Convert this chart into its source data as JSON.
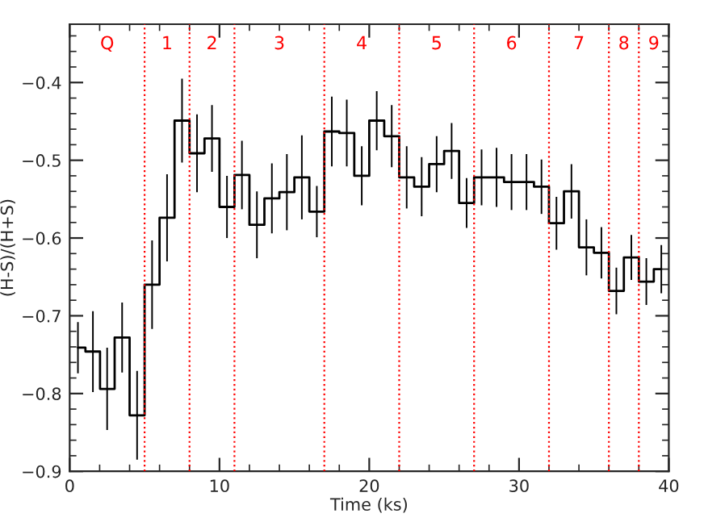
{
  "chart_data": {
    "type": "step",
    "xlabel": "Time (ks)",
    "ylabel": "(H-S)/(H+S)",
    "x": [
      0.55,
      1.55,
      2.5,
      3.5,
      4.5,
      5.5,
      6.5,
      7.5,
      8.5,
      9.5,
      10.5,
      11.5,
      12.5,
      13.5,
      14.5,
      15.5,
      16.5,
      17.5,
      18.5,
      19.5,
      20.5,
      21.5,
      22.5,
      23.5,
      24.5,
      25.5,
      26.5,
      27.5,
      28.5,
      29.5,
      30.5,
      31.5,
      32.5,
      33.5,
      34.5,
      35.5,
      36.5,
      37.5,
      38.5,
      39.5
    ],
    "values": [
      -0.741,
      -0.746,
      -0.794,
      -0.728,
      -0.828,
      -0.66,
      -0.574,
      -0.449,
      -0.491,
      -0.472,
      -0.56,
      -0.519,
      -0.583,
      -0.549,
      -0.541,
      -0.522,
      -0.566,
      -0.463,
      -0.465,
      -0.52,
      -0.449,
      -0.469,
      -0.522,
      -0.534,
      -0.505,
      -0.488,
      -0.555,
      -0.522,
      -0.522,
      -0.528,
      -0.528,
      -0.534,
      -0.581,
      -0.54,
      -0.612,
      -0.619,
      -0.668,
      -0.625,
      -0.656,
      -0.64
    ],
    "errors": [
      0.033,
      0.052,
      0.053,
      0.045,
      0.057,
      0.057,
      0.056,
      0.054,
      0.05,
      0.043,
      0.04,
      0.044,
      0.043,
      0.045,
      0.049,
      0.054,
      0.033,
      0.045,
      0.043,
      0.038,
      0.038,
      0.04,
      0.04,
      0.038,
      0.036,
      0.036,
      0.032,
      0.036,
      0.038,
      0.036,
      0.036,
      0.035,
      0.034,
      0.035,
      0.036,
      0.033,
      0.03,
      0.029,
      0.03,
      0.031
    ],
    "color": "#000000",
    "xlim": [
      0,
      40
    ],
    "xticks": [
      0,
      10,
      20,
      30,
      40
    ],
    "ylim": [
      -0.9,
      -0.325
    ],
    "yticks": [
      {
        "value": -0.9,
        "label": "−0.9"
      },
      {
        "value": -0.8,
        "label": "−0.8"
      },
      {
        "value": -0.7,
        "label": "−0.7"
      },
      {
        "value": -0.6,
        "label": "−0.6"
      },
      {
        "value": -0.5,
        "label": "−0.5"
      },
      {
        "value": -0.4,
        "label": "−0.4"
      }
    ],
    "grid": false,
    "ref_lines": [
      {
        "axis": "x",
        "value": 5,
        "color": "#ff0000",
        "line_style": "dotted"
      },
      {
        "axis": "x",
        "value": 8,
        "color": "#ff0000",
        "line_style": "dotted"
      },
      {
        "axis": "x",
        "value": 11,
        "color": "#ff0000",
        "line_style": "dotted"
      },
      {
        "axis": "x",
        "value": 17,
        "color": "#ff0000",
        "line_style": "dotted"
      },
      {
        "axis": "x",
        "value": 22,
        "color": "#ff0000",
        "line_style": "dotted"
      },
      {
        "axis": "x",
        "value": 27,
        "color": "#ff0000",
        "line_style": "dotted"
      },
      {
        "axis": "x",
        "value": 32,
        "color": "#ff0000",
        "line_style": "dotted"
      },
      {
        "axis": "x",
        "value": 36,
        "color": "#ff0000",
        "line_style": "dotted"
      },
      {
        "axis": "x",
        "value": 38,
        "color": "#ff0000",
        "line_style": "dotted"
      }
    ],
    "annotations": [
      "Q",
      "1",
      "2",
      "3",
      "4",
      "5",
      "6",
      "7",
      "8",
      "9"
    ]
  }
}
